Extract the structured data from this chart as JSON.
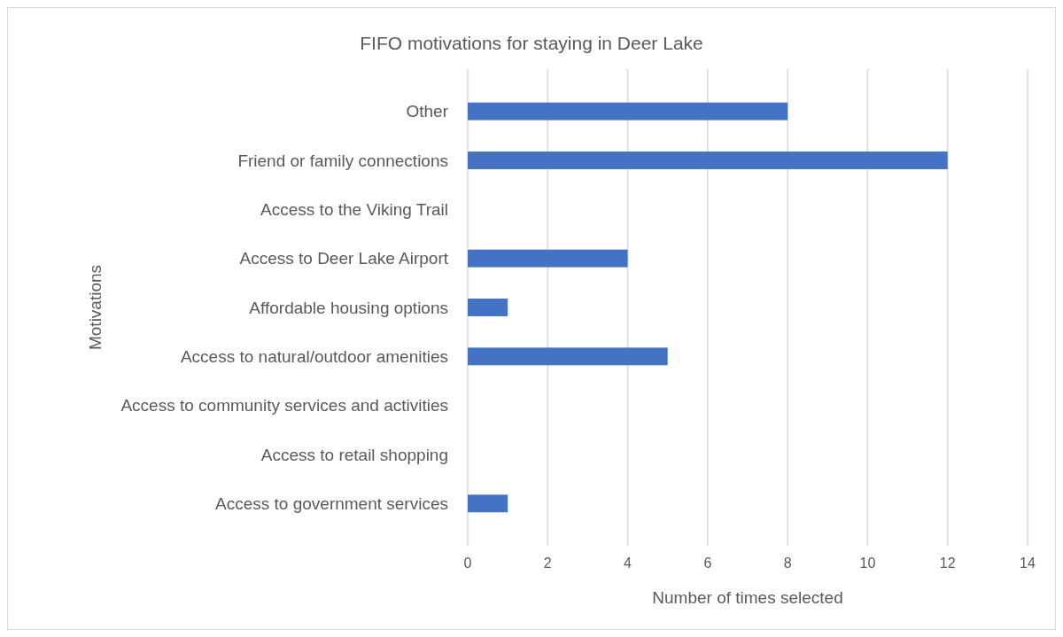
{
  "chart_data": {
    "type": "bar",
    "orientation": "horizontal",
    "title": "FIFO motivations for staying in Deer Lake",
    "xlabel": "Number of times selected",
    "ylabel": "Motivations",
    "categories": [
      "Other",
      "Friend or family connections",
      "Access to the Viking Trail",
      "Access to Deer Lake Airport",
      "Affordable housing options",
      "Access to natural/outdoor amenities",
      "Access to community services and activities",
      "Access to retail shopping",
      "Access to government services"
    ],
    "values": [
      8,
      12,
      0,
      4,
      1,
      5,
      0,
      0,
      1
    ],
    "color": "#4472c4",
    "xlim": [
      0,
      14
    ],
    "xticks": [
      0,
      2,
      4,
      6,
      8,
      10,
      12,
      14
    ],
    "grid": "x"
  }
}
